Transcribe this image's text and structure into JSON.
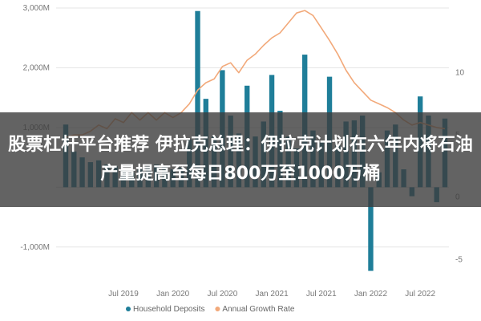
{
  "headline": "股票杠杆平台推荐 伊拉克总理：伊拉克计划在六年内将石油产量提高至每日800万至1000万桶",
  "chart_data": {
    "type": "bar",
    "x": [
      "2018-12",
      "2019-01",
      "2019-02",
      "2019-03",
      "2019-04",
      "2019-05",
      "2019-06",
      "2019-07",
      "2019-08",
      "2019-09",
      "2019-10",
      "2019-11",
      "2019-12",
      "2020-01",
      "2020-02",
      "2020-03",
      "2020-04",
      "2020-05",
      "2020-06",
      "2020-07",
      "2020-08",
      "2020-09",
      "2020-10",
      "2020-11",
      "2020-12",
      "2021-01",
      "2021-02",
      "2021-03",
      "2021-04",
      "2021-05",
      "2021-06",
      "2021-07",
      "2021-08",
      "2021-09",
      "2021-10",
      "2021-11",
      "2021-12",
      "2022-01",
      "2022-02",
      "2022-03",
      "2022-04",
      "2022-05",
      "2022-06",
      "2022-07",
      "2022-08",
      "2022-09",
      "2022-10"
    ],
    "series": [
      {
        "name": "Household Deposits",
        "type": "bar",
        "axis": "left",
        "color": "#1f7e99",
        "values": [
          1050,
          600,
          500,
          420,
          450,
          380,
          350,
          300,
          250,
          300,
          350,
          380,
          350,
          300,
          330,
          800,
          2950,
          1480,
          850,
          1960,
          1200,
          900,
          1700,
          850,
          1100,
          1880,
          1280,
          850,
          650,
          2220,
          950,
          750,
          1850,
          700,
          1100,
          1120,
          1200,
          -1400,
          250,
          950,
          1050,
          300,
          -150,
          1520,
          1200,
          -250,
          1150
        ]
      },
      {
        "name": "Annual Growth Rate",
        "type": "line",
        "axis": "right",
        "color": "#f2a97a",
        "values": [
          4.8,
          5.0,
          5.0,
          5.3,
          5.8,
          5.5,
          6.3,
          6.0,
          6.8,
          6.2,
          6.8,
          6.2,
          6.8,
          6.4,
          6.8,
          7.5,
          8.6,
          9.2,
          9.5,
          10.5,
          10.8,
          10.0,
          11.0,
          11.5,
          12.2,
          12.8,
          13.2,
          14.0,
          14.8,
          15.0,
          14.6,
          13.6,
          12.6,
          11.5,
          10.2,
          9.2,
          8.5,
          7.8,
          7.5,
          7.2,
          6.8,
          6.2,
          5.8,
          6.0,
          5.8,
          5.6,
          5.5
        ]
      }
    ],
    "y_left": {
      "ticks": [
        3000,
        2000,
        1000,
        0,
        -1000
      ],
      "tick_labels": [
        "3,000M",
        "2,000M",
        "1,000M",
        "",
        "-1,000M"
      ],
      "range": [
        -1500,
        3000
      ]
    },
    "y_right": {
      "ticks": [
        10,
        5,
        0,
        -5
      ],
      "tick_labels": [
        "10",
        "5",
        "0",
        "-5"
      ],
      "range": [
        -6.4,
        15.2
      ]
    },
    "x_ticks": [
      {
        "at": "2019-07",
        "label": "Jul 2019"
      },
      {
        "at": "2020-01",
        "label": "Jan 2020"
      },
      {
        "at": "2020-07",
        "label": "Jul 2020"
      },
      {
        "at": "2021-01",
        "label": "Jan 2021"
      },
      {
        "at": "2021-07",
        "label": "Jul 2021"
      },
      {
        "at": "2022-01",
        "label": "Jan 2022"
      },
      {
        "at": "2022-07",
        "label": "Jul 2022"
      }
    ],
    "legend": {
      "position": "bottom",
      "items": [
        "Household Deposits",
        "Annual Growth Rate"
      ]
    },
    "grid": true
  }
}
